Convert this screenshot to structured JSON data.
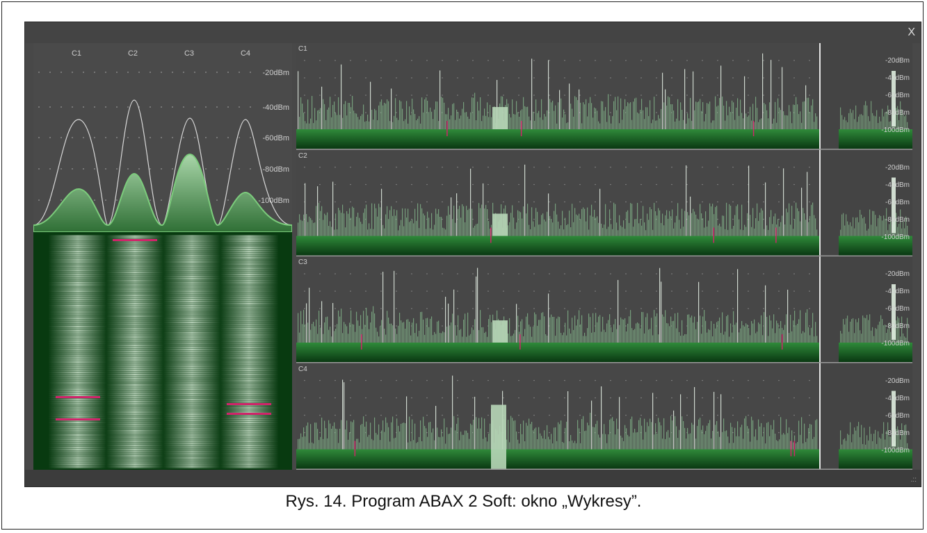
{
  "window": {
    "close_label": "X",
    "grip_label": ".::"
  },
  "left_panel": {
    "channels": [
      "C1",
      "C2",
      "C3",
      "C4"
    ],
    "scale": [
      "-20dBm",
      "-40dBm",
      "-60dBm",
      "-80dBm",
      "-100dBm"
    ]
  },
  "right_panel": {
    "traces": [
      {
        "label": "C1",
        "scale": [
          "-20dBm",
          "-40dBm",
          "-60dBm",
          "-80dBm",
          "-100dBm"
        ]
      },
      {
        "label": "C2",
        "scale": [
          "-20dBm",
          "-40dBm",
          "-60dBm",
          "-80dBm",
          "-100dBm"
        ]
      },
      {
        "label": "C3",
        "scale": [
          "-20dBm",
          "-40dBm",
          "-60dBm",
          "-80dBm",
          "-100dBm"
        ]
      },
      {
        "label": "C4",
        "scale": [
          "-20dBm",
          "-40dBm",
          "-60dBm",
          "-80dBm",
          "-100dBm"
        ]
      }
    ]
  },
  "caption": "Rys. 14. Program ABAX 2 Soft: okno „Wykresy”.",
  "colors": {
    "background": "#484848",
    "signal": "#2e8b3e",
    "peak": "#e6f2e6",
    "alarm": "#d0246a"
  }
}
